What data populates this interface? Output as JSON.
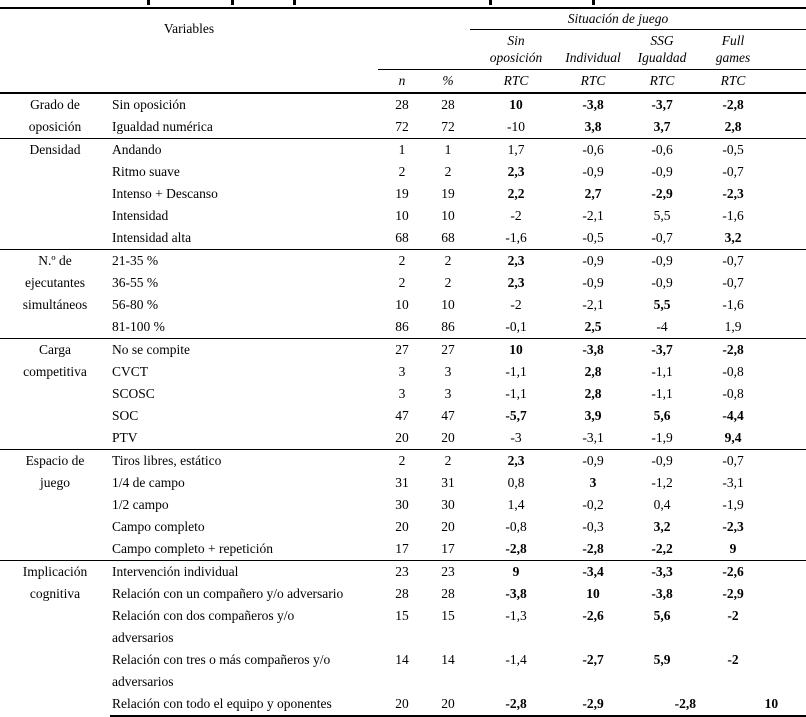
{
  "colors": {
    "text": "#000000",
    "background": "#ffffff",
    "rule": "#000000"
  },
  "table": {
    "header": {
      "variables_label": "Variables",
      "situacion_label": "Situación de juego",
      "n_label": "n",
      "pct_label": "%",
      "rtc_label": "RTC",
      "situations": [
        "Sin\noposición",
        "Individual",
        "SSG\nIgualdad",
        "Full\ngames"
      ]
    },
    "groups": [
      {
        "label": "Grado de\noposición",
        "rows": [
          {
            "variable": "Sin oposición",
            "n": "28",
            "pct": "28",
            "rtc": [
              "10",
              "-3,8",
              "-3,7",
              "-2,8"
            ],
            "bold": [
              true,
              true,
              true,
              true
            ]
          },
          {
            "variable": "Igualdad numérica",
            "n": "72",
            "pct": "72",
            "rtc": [
              "-10",
              "3,8",
              "3,7",
              "2,8"
            ],
            "bold": [
              false,
              true,
              true,
              true
            ]
          }
        ]
      },
      {
        "label": "Densidad",
        "rows": [
          {
            "variable": "Andando",
            "n": "1",
            "pct": "1",
            "rtc": [
              "1,7",
              "-0,6",
              "-0,6",
              "-0,5"
            ],
            "bold": [
              false,
              false,
              false,
              false
            ]
          },
          {
            "variable": "Ritmo suave",
            "n": "2",
            "pct": "2",
            "rtc": [
              "2,3",
              "-0,9",
              "-0,9",
              "-0,7"
            ],
            "bold": [
              true,
              false,
              false,
              false
            ]
          },
          {
            "variable": "Intenso + Descanso",
            "n": "19",
            "pct": "19",
            "rtc": [
              "2,2",
              "2,7",
              "-2,9",
              "-2,3"
            ],
            "bold": [
              true,
              true,
              true,
              true
            ]
          },
          {
            "variable": "Intensidad",
            "n": "10",
            "pct": "10",
            "rtc": [
              "-2",
              "-2,1",
              "5,5",
              "-1,6"
            ],
            "bold": [
              false,
              false,
              false,
              false
            ]
          },
          {
            "variable": "Intensidad alta",
            "n": "68",
            "pct": "68",
            "rtc": [
              "-1,6",
              "-0,5",
              "-0,7",
              "3,2"
            ],
            "bold": [
              false,
              false,
              false,
              true
            ]
          }
        ]
      },
      {
        "label": "N.º de\nejecutantes\nsimultáneos",
        "rows": [
          {
            "variable": "21-35 %",
            "n": "2",
            "pct": "2",
            "rtc": [
              "2,3",
              "-0,9",
              "-0,9",
              "-0,7"
            ],
            "bold": [
              true,
              false,
              false,
              false
            ]
          },
          {
            "variable": "36-55 %",
            "n": "2",
            "pct": "2",
            "rtc": [
              "2,3",
              "-0,9",
              "-0,9",
              "-0,7"
            ],
            "bold": [
              true,
              false,
              false,
              false
            ]
          },
          {
            "variable": "56-80 %",
            "n": "10",
            "pct": "10",
            "rtc": [
              "-2",
              "-2,1",
              "5,5",
              "-1,6"
            ],
            "bold": [
              false,
              false,
              true,
              false
            ]
          },
          {
            "variable": "81-100 %",
            "n": "86",
            "pct": "86",
            "rtc": [
              "-0,1",
              "2,5",
              "-4",
              "1,9"
            ],
            "bold": [
              false,
              true,
              false,
              false
            ]
          }
        ]
      },
      {
        "label": "Carga\ncompetitiva",
        "rows": [
          {
            "variable": "No se compite",
            "n": "27",
            "pct": "27",
            "rtc": [
              "10",
              "-3,8",
              "-3,7",
              "-2,8"
            ],
            "bold": [
              true,
              true,
              true,
              true
            ]
          },
          {
            "variable": "CVCT",
            "n": "3",
            "pct": "3",
            "rtc": [
              "-1,1",
              "2,8",
              "-1,1",
              "-0,8"
            ],
            "bold": [
              false,
              true,
              false,
              false
            ]
          },
          {
            "variable": "SCOSC",
            "n": "3",
            "pct": "3",
            "rtc": [
              "-1,1",
              "2,8",
              "-1,1",
              "-0,8"
            ],
            "bold": [
              false,
              true,
              false,
              false
            ]
          },
          {
            "variable": "SOC",
            "n": "47",
            "pct": "47",
            "rtc": [
              "-5,7",
              "3,9",
              "5,6",
              "-4,4"
            ],
            "bold": [
              true,
              true,
              true,
              true
            ]
          },
          {
            "variable": "PTV",
            "n": "20",
            "pct": "20",
            "rtc": [
              "-3",
              "-3,1",
              "-1,9",
              "9,4"
            ],
            "bold": [
              false,
              false,
              false,
              true
            ]
          }
        ]
      },
      {
        "label": "Espacio de\njuego",
        "rows": [
          {
            "variable": "Tiros libres, estático",
            "n": "2",
            "pct": "2",
            "rtc": [
              "2,3",
              "-0,9",
              "-0,9",
              "-0,7"
            ],
            "bold": [
              true,
              false,
              false,
              false
            ]
          },
          {
            "variable": "1/4 de campo",
            "n": "31",
            "pct": "31",
            "rtc": [
              "0,8",
              "3",
              "-1,2",
              "-3,1"
            ],
            "bold": [
              false,
              true,
              false,
              false
            ]
          },
          {
            "variable": "1/2 campo",
            "n": "30",
            "pct": "30",
            "rtc": [
              "1,4",
              "-0,2",
              "0,4",
              "-1,9"
            ],
            "bold": [
              false,
              false,
              false,
              false
            ]
          },
          {
            "variable": "Campo completo",
            "n": "20",
            "pct": "20",
            "rtc": [
              "-0,8",
              "-0,3",
              "3,2",
              "-2,3"
            ],
            "bold": [
              false,
              false,
              true,
              true
            ]
          },
          {
            "variable": "Campo completo + repetición",
            "n": "17",
            "pct": "17",
            "rtc": [
              "-2,8",
              "-2,8",
              "-2,2",
              "9"
            ],
            "bold": [
              true,
              true,
              true,
              true
            ]
          }
        ]
      },
      {
        "label": "Implicación\ncognitiva",
        "rows": [
          {
            "variable": "Intervención individual",
            "n": "23",
            "pct": "23",
            "rtc": [
              "9",
              "-3,4",
              "-3,3",
              "-2,6"
            ],
            "bold": [
              true,
              true,
              true,
              true
            ]
          },
          {
            "variable": "Relación con un compañero y/o adversario",
            "n": "28",
            "pct": "28",
            "rtc": [
              "-3,8",
              "10",
              "-3,8",
              "-2,9"
            ],
            "bold": [
              true,
              true,
              true,
              true
            ]
          },
          {
            "variable": "Relación con dos compañeros y/o\nadversarios",
            "n": "15",
            "pct": "15",
            "rtc": [
              "-1,3",
              "-2,6",
              "5,6",
              "-2"
            ],
            "bold": [
              false,
              true,
              true,
              true
            ]
          },
          {
            "variable": "Relación con tres o más compañeros y/o\nadversarios",
            "n": "14",
            "pct": "14",
            "rtc": [
              "-1,4",
              "-2,7",
              "5,9",
              "-2"
            ],
            "bold": [
              false,
              true,
              true,
              true
            ]
          },
          {
            "variable": "Relación con todo el equipo y oponentes",
            "n": "20",
            "pct": "20",
            "rtc": [
              "-2,8",
              "-2,9",
              "-2,8",
              "10"
            ],
            "bold": [
              true,
              true,
              true,
              true
            ],
            "align": [
              "c",
              "c",
              "r",
              "r"
            ]
          }
        ]
      }
    ]
  }
}
